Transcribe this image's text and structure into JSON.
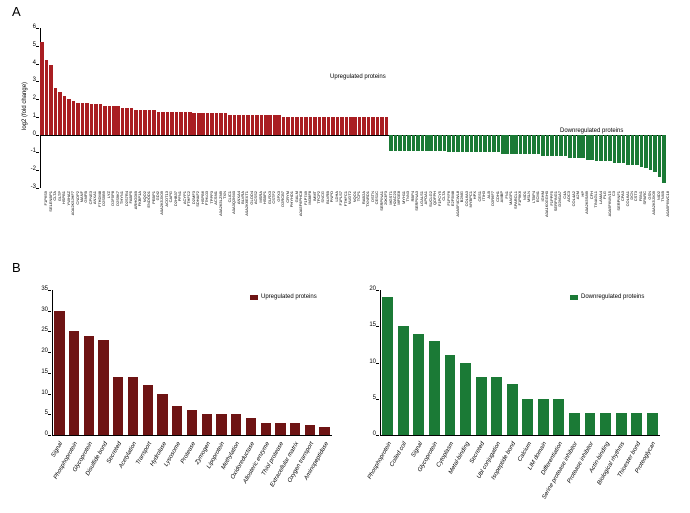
{
  "panelA": {
    "letter": "A",
    "type": "bar",
    "ylabel": "log2 (fold change)",
    "ylim": [
      -3,
      6
    ],
    "ytick_step": 1,
    "label_fontsize": 6,
    "up_color": "#a91e22",
    "down_color": "#1b7a36",
    "background_color": "#ffffff",
    "ann_up": "Upregulated proteins",
    "ann_down": "Downregulated proteins",
    "bars_up": [
      {
        "label": "F1P6S9",
        "v": 5.2
      },
      {
        "label": "SELENBP1",
        "v": 4.2
      },
      {
        "label": "CLTA",
        "v": 3.9
      },
      {
        "label": "GLTP",
        "v": 2.6
      },
      {
        "label": "HSPB1",
        "v": 2.4
      },
      {
        "label": "YWHAZ",
        "v": 2.2
      },
      {
        "label": "A0A2K5JHF7",
        "v": 2.0
      },
      {
        "label": "CNDP2",
        "v": 1.9
      },
      {
        "label": "MANF",
        "v": 1.8
      },
      {
        "label": "GMFB",
        "v": 1.8
      },
      {
        "label": "CPNE3",
        "v": 1.8
      },
      {
        "label": "ANXA1",
        "v": 1.7
      },
      {
        "label": "F7HDM8",
        "v": 1.7
      },
      {
        "label": "D2S5B9",
        "v": 1.7
      },
      {
        "label": "LYZ",
        "v": 1.6
      },
      {
        "label": "D2F5P8",
        "v": 1.6
      },
      {
        "label": "D2S9K7",
        "v": 1.6
      },
      {
        "label": "THYN1",
        "v": 1.6
      },
      {
        "label": "D2S7R4",
        "v": 1.5
      },
      {
        "label": "FABP5",
        "v": 1.5
      },
      {
        "label": "ARHGDIB",
        "v": 1.5
      },
      {
        "label": "FKBP1A",
        "v": 1.4
      },
      {
        "label": "NQO2",
        "v": 1.4
      },
      {
        "label": "ENDOD1",
        "v": 1.4
      },
      {
        "label": "PEBP1",
        "v": 1.4
      },
      {
        "label": "GDI2",
        "v": 1.4
      },
      {
        "label": "A0A2K5JX09",
        "v": 1.3
      },
      {
        "label": "ACOT13",
        "v": 1.3
      },
      {
        "label": "CAPG",
        "v": 1.3
      },
      {
        "label": "D2HB37",
        "v": 1.3
      },
      {
        "label": "PFN1",
        "v": 1.3
      },
      {
        "label": "ACYP1",
        "v": 1.3
      },
      {
        "label": "FTHFC2",
        "v": 1.3
      },
      {
        "label": "D2MF3",
        "v": 1.3
      },
      {
        "label": "SDHAF2",
        "v": 1.2
      },
      {
        "label": "HSPB6",
        "v": 1.2
      },
      {
        "label": "F7HL03",
        "v": 1.2
      },
      {
        "label": "TPPP3",
        "v": 1.2
      },
      {
        "label": "ACSM1",
        "v": 1.2
      },
      {
        "label": "A0A2K5LZM9",
        "v": 1.2
      },
      {
        "label": "TXN",
        "v": 1.2
      },
      {
        "label": "CLIC1",
        "v": 1.2
      },
      {
        "label": "A0A3Q2I640",
        "v": 1.1
      },
      {
        "label": "ANXA4",
        "v": 1.1
      },
      {
        "label": "BLVRA",
        "v": 1.1
      },
      {
        "label": "A0A2K6EXT1",
        "v": 1.1
      },
      {
        "label": "GLOD4",
        "v": 1.1
      },
      {
        "label": "ACSS2",
        "v": 1.1
      },
      {
        "label": "MSRA",
        "v": 1.1
      },
      {
        "label": "HSBP1",
        "v": 1.1
      },
      {
        "label": "GLRX3",
        "v": 1.1
      },
      {
        "label": "CSTF2",
        "v": 1.1
      },
      {
        "label": "GPX3",
        "v": 1.1
      },
      {
        "label": "D2RCB7",
        "v": 1.1
      },
      {
        "label": "CRYM",
        "v": 1.0
      },
      {
        "label": "PHYHD1",
        "v": 1.0
      },
      {
        "label": "GALM",
        "v": 1.0
      },
      {
        "label": "A0A5F6PHC8",
        "v": 1.0
      },
      {
        "label": "F1P749",
        "v": 1.0
      },
      {
        "label": "IM38F8",
        "v": 1.0
      },
      {
        "label": "IMMT",
        "v": 1.0
      },
      {
        "label": "TFCP2",
        "v": 1.0
      },
      {
        "label": "SNCG",
        "v": 1.0
      },
      {
        "label": "BLVRB",
        "v": 1.0
      },
      {
        "label": "PNPO",
        "v": 1.0
      },
      {
        "label": "LDHA",
        "v": 1.0
      },
      {
        "label": "F1PLS7",
        "v": 1.0
      },
      {
        "label": "FTHFC1",
        "v": 1.0
      },
      {
        "label": "NUDT2",
        "v": 1.0
      },
      {
        "label": "NQO1",
        "v": 1.0
      },
      {
        "label": "TCP1",
        "v": 1.0
      },
      {
        "label": "RAB2A",
        "v": 1.0
      },
      {
        "label": "TXNRD1",
        "v": 1.0
      },
      {
        "label": "DSTN",
        "v": 1.0
      },
      {
        "label": "CES1C",
        "v": 1.0
      },
      {
        "label": "SERPINA1",
        "v": 1.0
      },
      {
        "label": "20K3F3",
        "v": 1.0
      },
      {
        "label": "MGST1",
        "v": 1.0
      }
    ],
    "bars_down": [
      {
        "label": "H2AC20",
        "v": -0.9
      },
      {
        "label": "MFGE8",
        "v": -0.9
      },
      {
        "label": "MYH11",
        "v": -0.9
      },
      {
        "label": "TNN3",
        "v": -0.9
      },
      {
        "label": "RBP4",
        "v": -0.9
      },
      {
        "label": "SERPINA3",
        "v": -0.9
      },
      {
        "label": "LGALS1",
        "v": -0.9
      },
      {
        "label": "APOA1",
        "v": -0.9
      },
      {
        "label": "SUCLG2",
        "v": -0.9
      },
      {
        "label": "QDFPH",
        "v": -0.9
      },
      {
        "label": "F1PCY5",
        "v": -0.9
      },
      {
        "label": "CLTA",
        "v": -0.9
      },
      {
        "label": "F1PYF6",
        "v": -0.9
      },
      {
        "label": "E2F5M8",
        "v": -1.0
      },
      {
        "label": "A0A5F4CWL8",
        "v": -1.0
      },
      {
        "label": "B2MG",
        "v": -1.0
      },
      {
        "label": "COL6A3",
        "v": -1.0
      },
      {
        "label": "MYBPC1",
        "v": -1.0
      },
      {
        "label": "HPX",
        "v": -1.0
      },
      {
        "label": "CES1",
        "v": -1.0
      },
      {
        "label": "ITIH3",
        "v": -1.0
      },
      {
        "label": "ALB",
        "v": -1.0
      },
      {
        "label": "D2R6F7",
        "v": -1.0
      },
      {
        "label": "CDH1",
        "v": -1.0
      },
      {
        "label": "AMBP",
        "v": -1.0
      },
      {
        "label": "FN1",
        "v": -1.1
      },
      {
        "label": "MAGP1",
        "v": -1.1
      },
      {
        "label": "SPARCL1",
        "v": -1.1
      },
      {
        "label": "F1P9K6",
        "v": -1.1
      },
      {
        "label": "NID1",
        "v": -1.1
      },
      {
        "label": "MSLN",
        "v": -1.1
      },
      {
        "label": "LTBP4",
        "v": -1.1
      },
      {
        "label": "ECM1",
        "v": -1.1
      },
      {
        "label": "IGHM",
        "v": -1.1
      },
      {
        "label": "A0A1K0GGH0",
        "v": -1.2
      },
      {
        "label": "F1PPF5",
        "v": -1.2
      },
      {
        "label": "SERPING1",
        "v": -1.2
      },
      {
        "label": "D2M1A7",
        "v": -1.2
      },
      {
        "label": "C4A",
        "v": -1.2
      },
      {
        "label": "AOC3",
        "v": -1.2
      },
      {
        "label": "COL4A2",
        "v": -1.3
      },
      {
        "label": "A2M",
        "v": -1.3
      },
      {
        "label": "HP",
        "v": -1.3
      },
      {
        "label": "A0A2K5S8I9",
        "v": -1.3
      },
      {
        "label": "CFH",
        "v": -1.4
      },
      {
        "label": "TINAGL1",
        "v": -1.4
      },
      {
        "label": "LAMA4",
        "v": -1.5
      },
      {
        "label": "PLG",
        "v": -1.5
      },
      {
        "label": "A0A5F6WV15",
        "v": -1.5
      },
      {
        "label": "C3",
        "v": -1.5
      },
      {
        "label": "SERPINF1",
        "v": -1.6
      },
      {
        "label": "CPA3",
        "v": -1.6
      },
      {
        "label": "COL6A1",
        "v": -1.6
      },
      {
        "label": "DCN",
        "v": -1.7
      },
      {
        "label": "CST3",
        "v": -1.7
      },
      {
        "label": "FBN1",
        "v": -1.7
      },
      {
        "label": "SPARC",
        "v": -1.8
      },
      {
        "label": "GSN",
        "v": -1.9
      },
      {
        "label": "A0A2K5JX09",
        "v": -2.0
      },
      {
        "label": "NID2",
        "v": -2.1
      },
      {
        "label": "TNXB",
        "v": -2.4
      },
      {
        "label": "A0A5F6WC18",
        "v": -2.7
      }
    ]
  },
  "panelB": {
    "letter": "B",
    "type": "bar",
    "left": {
      "legend": "Upregulated proteins",
      "color": "#6e1414",
      "ylim": [
        0,
        35
      ],
      "ytick_step": 5,
      "bars": [
        {
          "label": "Signal",
          "v": 30
        },
        {
          "label": "Phosphoprotein",
          "v": 25
        },
        {
          "label": "Glycoprotein",
          "v": 24
        },
        {
          "label": "Disulfide bond",
          "v": 23
        },
        {
          "label": "Secreted",
          "v": 14
        },
        {
          "label": "Acetylation",
          "v": 14
        },
        {
          "label": "Transport",
          "v": 12
        },
        {
          "label": "Hydrolase",
          "v": 10
        },
        {
          "label": "Lysosome",
          "v": 7
        },
        {
          "label": "Protease",
          "v": 6
        },
        {
          "label": "Zymogen",
          "v": 5
        },
        {
          "label": "Lipoprotein",
          "v": 5
        },
        {
          "label": "Methylation",
          "v": 5
        },
        {
          "label": "Oxidoreductase",
          "v": 4
        },
        {
          "label": "Allosteric enzyme",
          "v": 3
        },
        {
          "label": "Thiol protease",
          "v": 3
        },
        {
          "label": "Extracellular matrix",
          "v": 3
        },
        {
          "label": "Oxygen transport",
          "v": 2.5
        },
        {
          "label": "Aminopeptidase",
          "v": 2
        }
      ]
    },
    "right": {
      "legend": "Downregulated proteins",
      "color": "#1b7a36",
      "ylim": [
        0,
        20
      ],
      "ytick_step": 5,
      "bars": [
        {
          "label": "Phosphoprotein",
          "v": 19
        },
        {
          "label": "Coiled coil",
          "v": 15
        },
        {
          "label": "Signal",
          "v": 14
        },
        {
          "label": "Glycoprotein",
          "v": 13
        },
        {
          "label": "Cytoplasm",
          "v": 11
        },
        {
          "label": "Metal-binding",
          "v": 10
        },
        {
          "label": "Secreted",
          "v": 8
        },
        {
          "label": "Ubl conjugation",
          "v": 8
        },
        {
          "label": "Isopeptide bond",
          "v": 7
        },
        {
          "label": "Calcium",
          "v": 5
        },
        {
          "label": "LIM domain",
          "v": 5
        },
        {
          "label": "Differentiation",
          "v": 5
        },
        {
          "label": "Serine protease inhibitor",
          "v": 3
        },
        {
          "label": "Protease inhibitor",
          "v": 3
        },
        {
          "label": "Actin-binding",
          "v": 3
        },
        {
          "label": "Biological rhythms",
          "v": 3
        },
        {
          "label": "Thioester bond",
          "v": 3
        },
        {
          "label": "Proteoglycan",
          "v": 3
        }
      ]
    }
  }
}
